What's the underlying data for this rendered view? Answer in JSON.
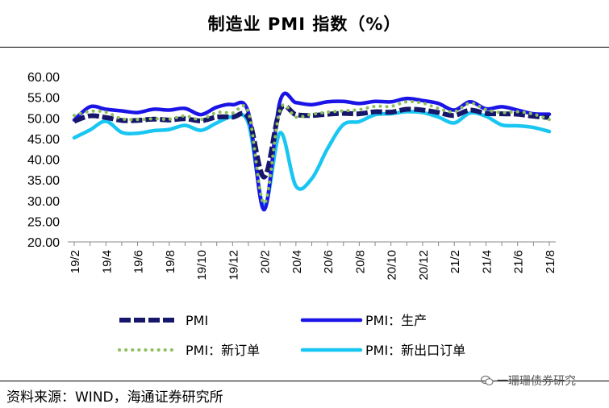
{
  "header": {
    "title": "制造业 PMI 指数（%）"
  },
  "footer": {
    "source": "资料来源：WIND，海通证券研究所",
    "watermark": "一珊珊债券研究"
  },
  "chart_data": {
    "type": "line",
    "title": "制造业 PMI 指数（%）",
    "xlabel": "",
    "ylabel": "",
    "ylim": [
      20,
      60
    ],
    "yticks": [
      "60.00",
      "55.00",
      "50.00",
      "45.00",
      "40.00",
      "35.00",
      "30.00",
      "25.00",
      "20.00"
    ],
    "x": [
      "19/2",
      "19/3",
      "19/4",
      "19/5",
      "19/6",
      "19/7",
      "19/8",
      "19/9",
      "19/10",
      "19/11",
      "19/12",
      "20/1",
      "20/2",
      "20/3",
      "20/4",
      "20/5",
      "20/6",
      "20/7",
      "20/8",
      "20/9",
      "20/10",
      "20/11",
      "20/12",
      "21/1",
      "21/2",
      "21/3",
      "21/4",
      "21/5",
      "21/6",
      "21/7",
      "21/8"
    ],
    "xticks": [
      "19/2",
      "19/4",
      "19/6",
      "19/8",
      "19/10",
      "19/12",
      "20/2",
      "20/4",
      "20/6",
      "20/8",
      "20/10",
      "20/12",
      "21/2",
      "21/4",
      "21/6",
      "21/8"
    ],
    "grid": false,
    "legend_position": "bottom",
    "series": [
      {
        "name": "PMI",
        "color": "#16166b",
        "style": "dashed",
        "values": [
          49.2,
          50.5,
          50.1,
          49.4,
          49.4,
          49.7,
          49.5,
          49.8,
          49.3,
          50.2,
          50.2,
          50.0,
          35.7,
          52.0,
          50.8,
          50.6,
          50.9,
          51.1,
          51.0,
          51.5,
          51.4,
          52.1,
          51.9,
          51.3,
          50.6,
          51.9,
          51.1,
          51.0,
          50.9,
          50.4,
          50.1
        ]
      },
      {
        "name": "PMI：生产",
        "color": "#1b14e6",
        "style": "solid",
        "values": [
          49.5,
          52.7,
          52.1,
          51.7,
          51.3,
          52.1,
          51.9,
          52.3,
          50.8,
          52.6,
          53.2,
          51.3,
          27.8,
          54.1,
          53.7,
          53.2,
          53.9,
          54.0,
          53.5,
          54.0,
          53.9,
          54.7,
          54.2,
          53.5,
          51.9,
          53.9,
          52.2,
          52.7,
          51.9,
          51.0,
          50.9
        ]
      },
      {
        "name": "PMI：新订单",
        "color": "#8cbf5c",
        "style": "dotted",
        "values": [
          50.6,
          51.6,
          51.4,
          49.8,
          49.6,
          49.8,
          49.7,
          50.5,
          49.6,
          51.3,
          51.2,
          51.4,
          29.3,
          52.0,
          50.2,
          50.9,
          51.4,
          51.7,
          52.0,
          52.8,
          52.8,
          53.9,
          53.6,
          52.3,
          51.5,
          53.6,
          52.0,
          51.3,
          51.5,
          50.9,
          49.6
        ]
      },
      {
        "name": "PMI：新出口订单",
        "color": "#19c6f2",
        "style": "solid",
        "values": [
          45.2,
          47.1,
          49.2,
          46.5,
          46.3,
          46.9,
          47.2,
          48.2,
          47.0,
          48.8,
          50.3,
          48.7,
          28.7,
          46.4,
          33.5,
          35.3,
          42.6,
          48.4,
          49.1,
          50.8,
          51.0,
          51.5,
          51.3,
          50.2,
          48.8,
          51.2,
          50.4,
          48.3,
          48.1,
          47.7,
          46.7
        ]
      }
    ]
  }
}
